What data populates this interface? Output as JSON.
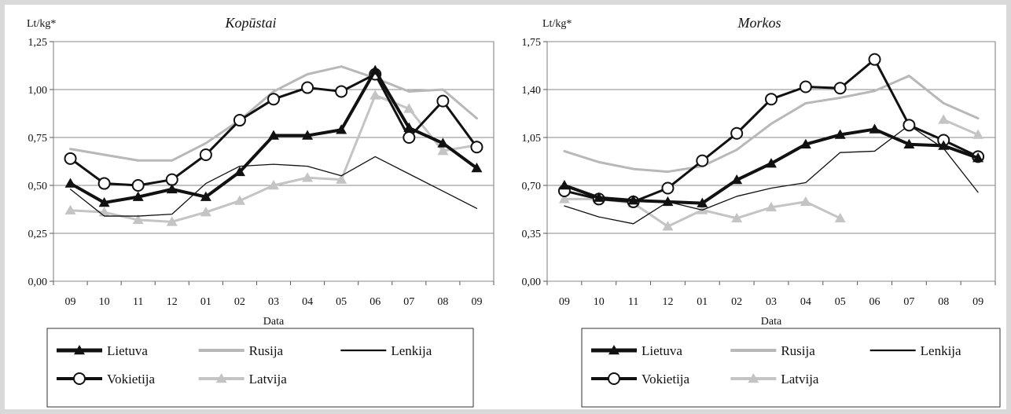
{
  "chart_data": [
    {
      "type": "line",
      "title": "Kopūstai",
      "ylabel": "Lt/kg*",
      "xlabel": "Data",
      "ylim": [
        0,
        1.25
      ],
      "yticks": [
        "0,00",
        "0,25",
        "0,50",
        "0,75",
        "1,00",
        "1,25"
      ],
      "ytick_values": [
        0,
        0.25,
        0.5,
        0.75,
        1.0,
        1.25
      ],
      "categories": [
        "09",
        "10",
        "11",
        "12",
        "01",
        "02",
        "03",
        "04",
        "05",
        "06",
        "07",
        "08",
        "09"
      ],
      "grid": "horizontal",
      "legend_placement": "bottom",
      "series": [
        {
          "name": "Lietuva",
          "color": "#111111",
          "width": 4,
          "marker": "triangle",
          "values": [
            0.51,
            0.41,
            0.44,
            0.48,
            0.44,
            0.57,
            0.76,
            0.76,
            0.79,
            1.1,
            0.8,
            0.72,
            0.59
          ]
        },
        {
          "name": "Rusija",
          "color": "#b8b8b8",
          "width": 3,
          "marker": "none",
          "values": [
            0.69,
            0.66,
            0.63,
            0.63,
            0.72,
            0.84,
            0.99,
            1.08,
            1.12,
            1.06,
            0.99,
            1.0,
            0.85
          ]
        },
        {
          "name": "Lenkija",
          "color": "#111111",
          "width": 1.3,
          "marker": "none",
          "values": [
            0.48,
            0.34,
            0.34,
            0.35,
            0.51,
            0.6,
            0.61,
            0.6,
            0.55,
            0.65,
            0.56,
            0.47,
            0.38
          ]
        },
        {
          "name": "Vokietija",
          "color": "#111111",
          "width": 3,
          "marker": "circle",
          "values": [
            0.64,
            0.51,
            0.5,
            0.53,
            0.66,
            0.84,
            0.95,
            1.01,
            0.99,
            1.08,
            0.75,
            0.94,
            0.7
          ]
        },
        {
          "name": "Latvija",
          "color": "#c4c4c4",
          "width": 3,
          "marker": "triangle",
          "values": [
            0.37,
            0.36,
            0.32,
            0.31,
            0.36,
            0.42,
            0.5,
            0.54,
            0.53,
            0.97,
            0.9,
            0.68,
            0.71
          ]
        }
      ]
    },
    {
      "type": "line",
      "title": "Morkos",
      "ylabel": "Lt/kg*",
      "xlabel": "Data",
      "ylim": [
        0,
        1.75
      ],
      "yticks": [
        "0,00",
        "0,35",
        "0,70",
        "1,05",
        "1,40",
        "1,75"
      ],
      "ytick_values": [
        0,
        0.35,
        0.7,
        1.05,
        1.4,
        1.75
      ],
      "categories": [
        "09",
        "10",
        "11",
        "12",
        "01",
        "02",
        "03",
        "04",
        "05",
        "06",
        "07",
        "08",
        "09"
      ],
      "grid": "horizontal",
      "legend_placement": "bottom",
      "series": [
        {
          "name": "Lietuva",
          "color": "#111111",
          "width": 4,
          "marker": "triangle",
          "values": [
            0.7,
            0.61,
            0.59,
            0.58,
            0.57,
            0.74,
            0.86,
            1.0,
            1.07,
            1.11,
            1.0,
            0.99,
            0.9
          ]
        },
        {
          "name": "Rusija",
          "color": "#b8b8b8",
          "width": 3,
          "marker": "none",
          "values": [
            0.95,
            0.87,
            0.82,
            0.8,
            0.84,
            0.96,
            1.15,
            1.3,
            1.34,
            1.39,
            1.5,
            1.3,
            1.19
          ]
        },
        {
          "name": "Lenkija",
          "color": "#111111",
          "width": 1.3,
          "marker": "none",
          "values": [
            0.55,
            0.47,
            0.42,
            0.58,
            0.52,
            0.62,
            0.68,
            0.72,
            0.94,
            0.95,
            1.14,
            0.97,
            0.65
          ]
        },
        {
          "name": "Vokietija",
          "color": "#111111",
          "width": 3,
          "marker": "circle",
          "values": [
            0.66,
            0.6,
            0.58,
            0.68,
            0.88,
            1.08,
            1.33,
            1.42,
            1.41,
            1.62,
            1.14,
            1.03,
            0.91
          ]
        },
        {
          "name": "Latvija",
          "color": "#c4c4c4",
          "width": 3,
          "marker": "triangle",
          "values": [
            0.6,
            0.6,
            0.57,
            0.4,
            0.52,
            0.46,
            0.54,
            0.58,
            0.46,
            null,
            null,
            1.18,
            1.07
          ]
        }
      ]
    }
  ]
}
